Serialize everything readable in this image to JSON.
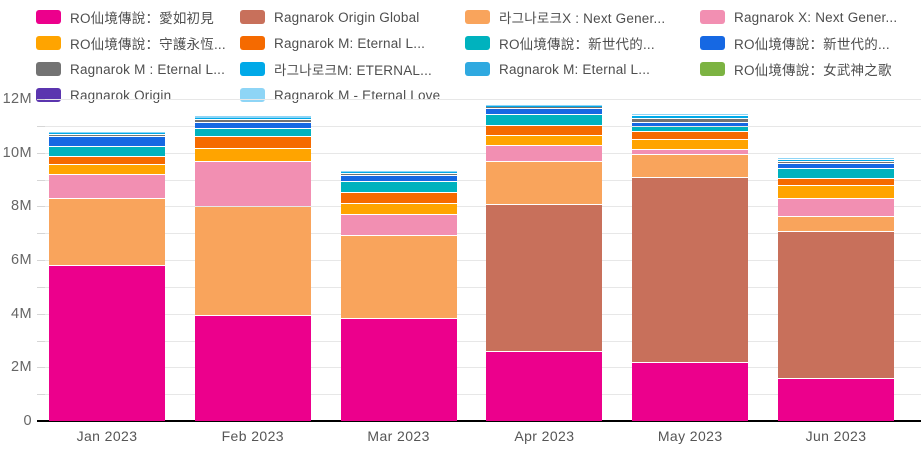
{
  "chart_data": {
    "type": "bar",
    "stacked": true,
    "title": "",
    "unit": "M",
    "legend_position": "top",
    "grid": true,
    "categories": [
      "Jan 2023",
      "Feb 2023",
      "Mar 2023",
      "Apr 2023",
      "May 2023",
      "Jun 2023"
    ],
    "series": [
      {
        "name": "RO仙境傳說：愛如初見",
        "color": "#EC008C",
        "values": [
          5.8,
          3.95,
          3.85,
          2.6,
          2.2,
          1.6
        ]
      },
      {
        "name": "Ragnarok Origin Global",
        "color": "#C8705B",
        "values": [
          0,
          0,
          0,
          5.5,
          6.9,
          5.5
        ]
      },
      {
        "name": "라그나로크X : Next Gener...",
        "color": "#F9A45C",
        "values": [
          2.5,
          4.05,
          3.1,
          1.6,
          0.85,
          0.55
        ]
      },
      {
        "name": "Ragnarok X: Next Gener...",
        "color": "#F28FB2",
        "values": [
          0.9,
          1.7,
          0.75,
          0.6,
          0.2,
          0.65
        ]
      },
      {
        "name": "RO仙境傳說：守護永恆...",
        "color": "#FFA400",
        "values": [
          0.38,
          0.46,
          0.42,
          0.36,
          0.35,
          0.5
        ]
      },
      {
        "name": "Ragnarok M: Eternal L...",
        "color": "#F56A00",
        "values": [
          0.28,
          0.48,
          0.42,
          0.36,
          0.3,
          0.27
        ]
      },
      {
        "name": "RO仙境傳說：新世代的...",
        "color": "#00B2BE",
        "values": [
          0.4,
          0.28,
          0.4,
          0.42,
          0.2,
          0.35
        ]
      },
      {
        "name": "RO仙境傳說：新世代的...",
        "color": "#1668E3",
        "values": [
          0.35,
          0.21,
          0.23,
          0.21,
          0.13,
          0.19
        ]
      },
      {
        "name": "Ragnarok M : Eternal L...",
        "color": "#737373",
        "values": [
          0.1,
          0.14,
          0.08,
          0.06,
          0.15,
          0.08
        ]
      },
      {
        "name": "라그나로크M: ETERNAL...",
        "color": "#00A9E8",
        "values": [
          0.03,
          0.04,
          0.03,
          0.02,
          0.11,
          0.06
        ]
      },
      {
        "name": "Ragnarok M: Eternal L...",
        "color": "#2FA9E0",
        "values": [
          0,
          0,
          0,
          0,
          0,
          0
        ]
      },
      {
        "name": "RO仙境傳說：女武神之歌",
        "color": "#7CB342",
        "values": [
          0,
          0,
          0,
          0,
          0,
          0
        ]
      },
      {
        "name": "Ragnarok Origin",
        "color": "#5B35AF",
        "values": [
          0,
          0,
          0,
          0,
          0,
          0
        ]
      },
      {
        "name": "Ragnarok M - Eternal Love",
        "color": "#8ED5F6",
        "values": [
          0.07,
          0.1,
          0.06,
          0.04,
          0.07,
          0.06
        ]
      }
    ],
    "yaxis": {
      "min": 0,
      "max": 12,
      "major_step": 2,
      "minor_step": 1,
      "tick_labels": [
        "0",
        "2M",
        "4M",
        "6M",
        "8M",
        "10M",
        "12M"
      ]
    }
  }
}
